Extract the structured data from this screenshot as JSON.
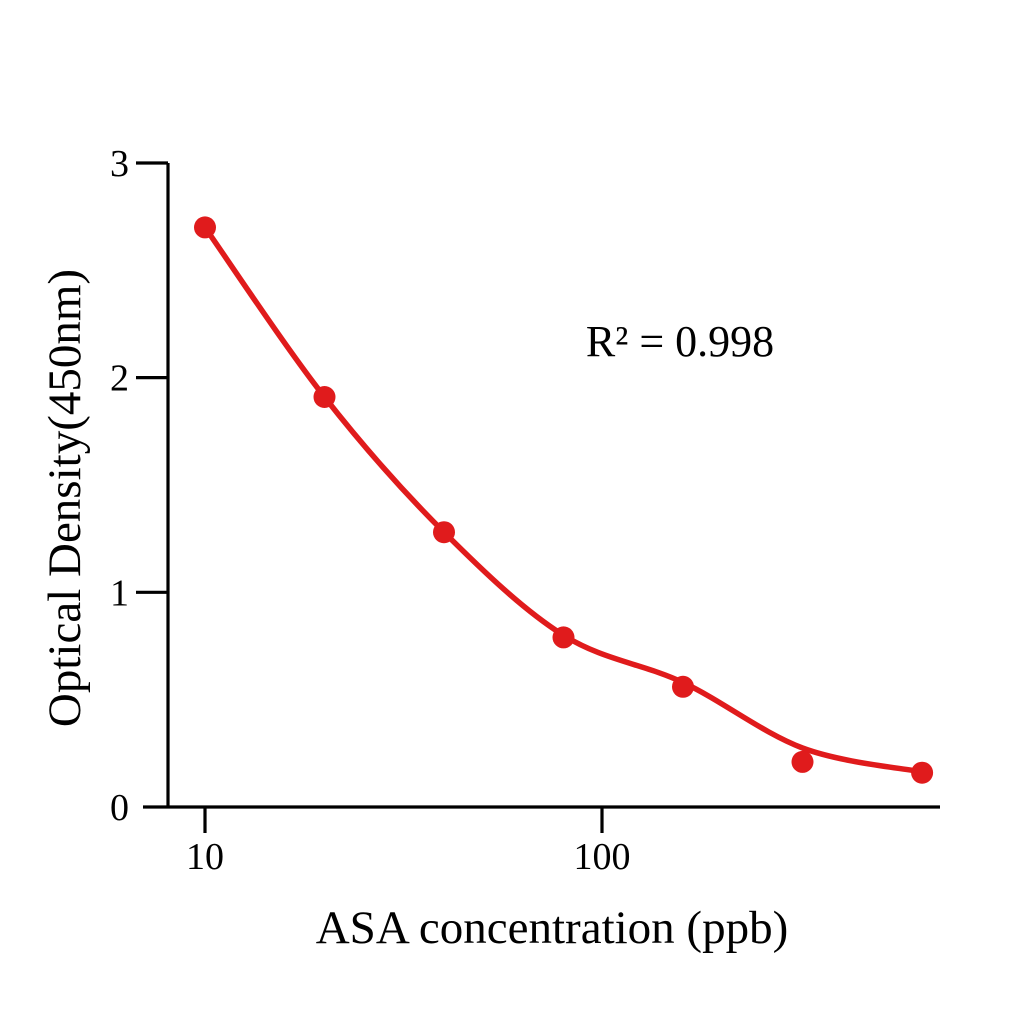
{
  "figure": {
    "background": "#ffffff"
  },
  "chart_data": {
    "type": "scatter",
    "title": "",
    "xlabel": "ASA concentration (ppb)",
    "ylabel": "Optical Density(450nm)",
    "annotation": "R² = 0.998",
    "x_scale": "log10",
    "x": [
      10,
      20,
      40,
      80,
      160,
      320,
      640
    ],
    "series": [
      {
        "name": "data-points",
        "style": "filled-circle-markers",
        "color": "#e01b1c",
        "values": [
          2.7,
          1.91,
          1.28,
          0.79,
          0.56,
          0.21,
          0.16
        ]
      },
      {
        "name": "fitted-curve",
        "style": "smooth-line",
        "color": "#e01b1c",
        "values": [
          2.7,
          1.91,
          1.28,
          0.8,
          0.58,
          0.275,
          0.163
        ]
      }
    ],
    "xticks": [
      10,
      100
    ],
    "yticks": [
      0,
      1,
      2,
      3
    ],
    "xlim": [
      8.5,
      700
    ],
    "ylim": [
      0,
      3.0
    ],
    "grid": false,
    "legend": "none",
    "axis_color": "#000000",
    "marker_color": "#e01b1c"
  }
}
